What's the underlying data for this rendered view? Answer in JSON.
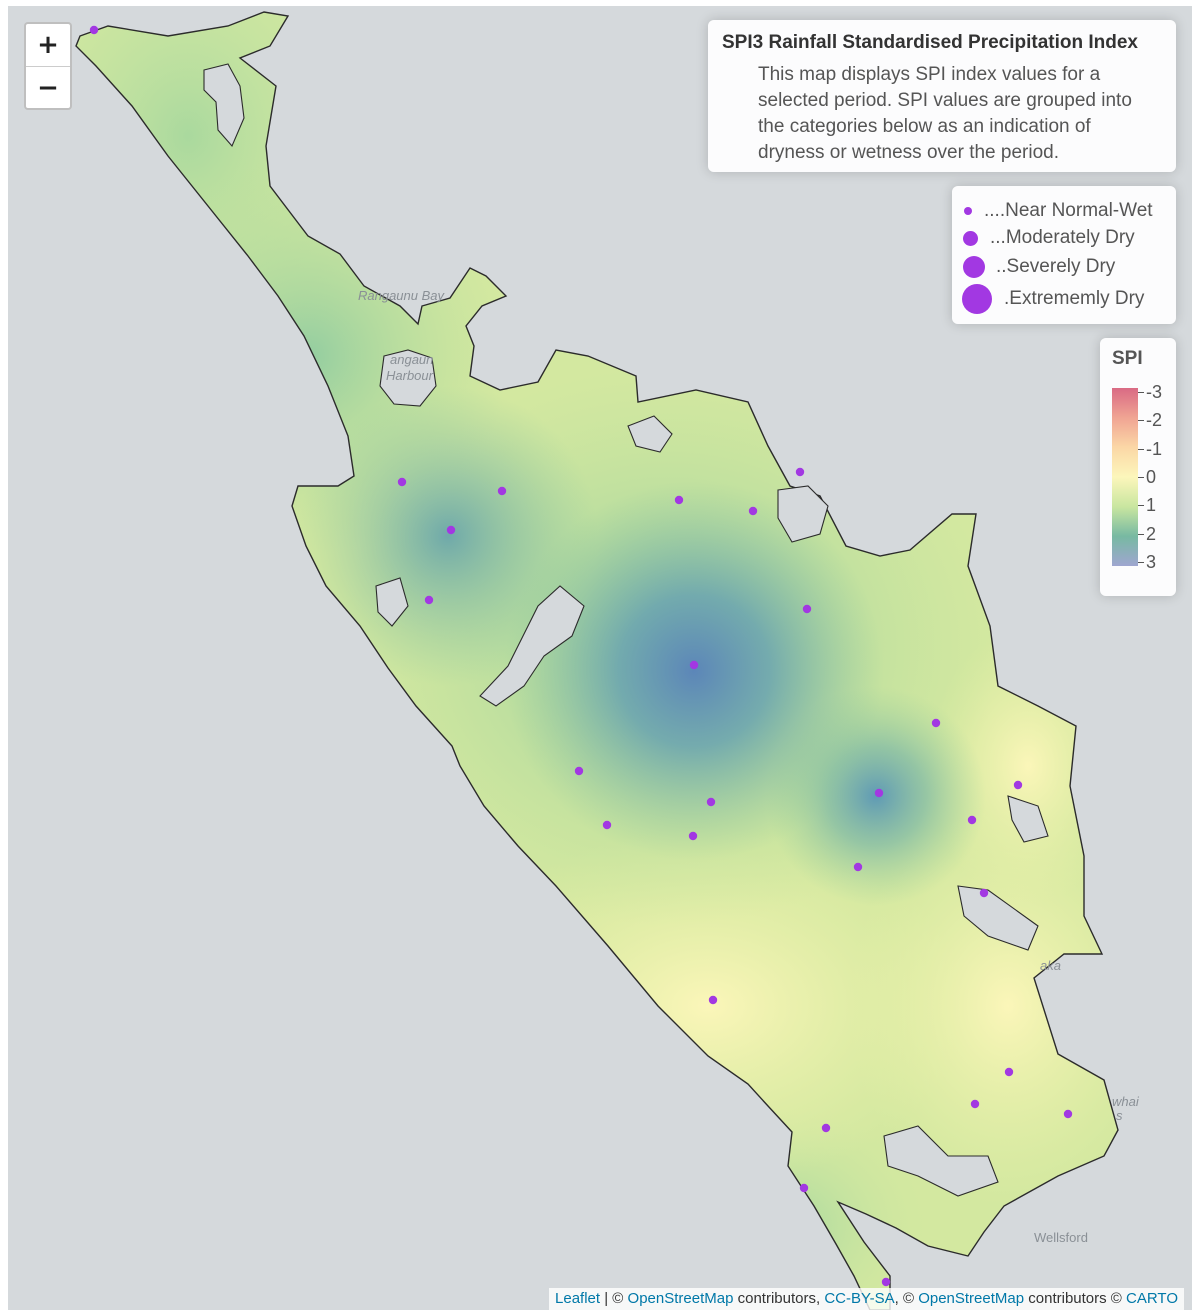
{
  "zoom": {
    "in_label": "+",
    "out_label": "−"
  },
  "info": {
    "title": "SPI3 Rainfall Standardised Precipitation Index",
    "text": "This map displays SPI index values for a selected period. SPI values are grouped into the categories below as an indication of dryness or wetness over the period."
  },
  "size_legend": {
    "marker_color": "#a238e2",
    "items": [
      {
        "label": "....Near Normal-Wet"
      },
      {
        "label": "...Moderately Dry"
      },
      {
        "label": "..Severely Dry"
      },
      {
        "label": ".Extrememly Dry"
      }
    ]
  },
  "spi_legend": {
    "title": "SPI",
    "ticks": [
      "-3",
      "-2",
      "-1",
      "0",
      "1",
      "2",
      "3"
    ],
    "colors": [
      "#d96a84",
      "#f0a493",
      "#fbd7a6",
      "#fcf6bb",
      "#c9e6a0",
      "#77b9a2",
      "#9fa6d0"
    ]
  },
  "place_labels": [
    {
      "id": "rangaunu-bay",
      "text": "Rangaunu Bay"
    },
    {
      "id": "rangaunu-harbour-1",
      "text": "angaun"
    },
    {
      "id": "rangaunu-harbour-2",
      "text": "Harbour"
    },
    {
      "id": "kaka",
      "text": "aka"
    },
    {
      "id": "mangawhai",
      "text": "whai"
    },
    {
      "id": "mangawhai-2",
      "text": "s"
    },
    {
      "id": "wellsford",
      "text": "Wellsford"
    }
  ],
  "attribution": {
    "leaflet": "Leaflet",
    "sep": " | © ",
    "osm1": "OpenStreetMap",
    "contributors1": " contributors, ",
    "ccbysa": "CC-BY-SA",
    "sep2": ", © ",
    "osm2": "OpenStreetMap",
    "contributors2": " contributors © ",
    "carto": "CARTO"
  },
  "colors": {
    "map_background": "#d5d9dc",
    "land_neutral": "#f2f1ed",
    "outline": "#2b2b2b",
    "station": "#a238e2"
  }
}
